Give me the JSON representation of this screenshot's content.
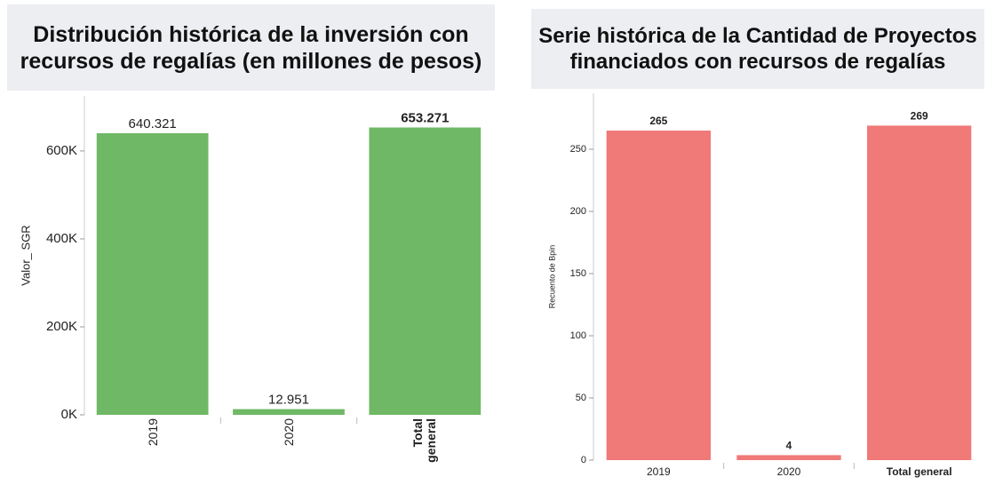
{
  "chart_data": [
    {
      "type": "bar",
      "title": "Distribución histórica de la inversión con recursos de regalías (en millones de pesos)",
      "y_label": "Valor_ SGR",
      "categories": [
        "2019",
        "2020",
        "Total general"
      ],
      "values": [
        640321,
        12951,
        653271
      ],
      "value_labels": [
        "640.321",
        "12.951",
        "653.271"
      ],
      "color": "#6fb865",
      "ylim": [
        0,
        725000
      ],
      "yticks": [
        {
          "value": 0,
          "label": "0K"
        },
        {
          "value": 200000,
          "label": "200K"
        },
        {
          "value": 400000,
          "label": "400K"
        },
        {
          "value": 600000,
          "label": "600K"
        }
      ],
      "grid": false
    },
    {
      "type": "bar",
      "title": "Serie histórica de la Cantidad de Proyectos financiados con recursos de regalías",
      "y_label": "Recuento de Bpin",
      "categories": [
        "2019",
        "2020",
        "Total general"
      ],
      "values": [
        265,
        4,
        269
      ],
      "color": "#f07a78",
      "ylim": [
        0,
        295
      ],
      "yticks": [
        0,
        50,
        100,
        150,
        200,
        250
      ],
      "grid": false
    }
  ]
}
